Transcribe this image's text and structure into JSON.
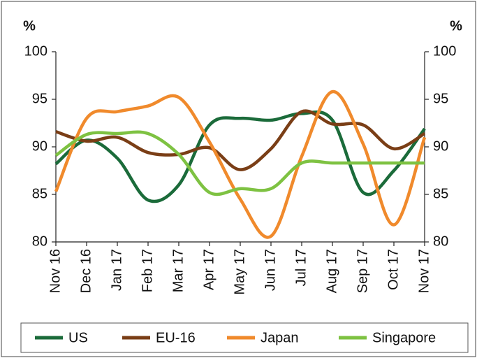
{
  "chart_data": {
    "type": "line",
    "y_label": "%",
    "y2_label": "%",
    "categories": [
      "Nov 16",
      "Dec 16",
      "Jan 17",
      "Feb 17",
      "Mar 17",
      "Apr 17",
      "May 17",
      "Jun 17",
      "Jul 17",
      "Aug 17",
      "Sep 17",
      "Oct 17",
      "Nov 17"
    ],
    "series": [
      {
        "name": "US",
        "color": "#1b6b3a",
        "values": [
          88.2,
          90.7,
          88.8,
          84.4,
          86.0,
          92.3,
          93.0,
          92.8,
          93.5,
          92.8,
          85.2,
          87.5,
          91.9
        ]
      },
      {
        "name": "EU-16",
        "color": "#7a3e16",
        "values": [
          91.6,
          90.6,
          91.0,
          89.4,
          89.2,
          89.9,
          87.6,
          89.8,
          93.7,
          92.4,
          92.3,
          89.8,
          91.4
        ]
      },
      {
        "name": "Japan",
        "color": "#f08a2c",
        "values": [
          85.3,
          93.0,
          93.7,
          94.3,
          95.2,
          90.5,
          84.5,
          80.6,
          89.0,
          95.8,
          90.3,
          81.8,
          91.0
        ]
      },
      {
        "name": "Singapore",
        "color": "#7ec242",
        "values": [
          89.1,
          91.3,
          91.4,
          91.4,
          89.2,
          85.2,
          85.6,
          85.6,
          88.3,
          88.3,
          88.3,
          88.3,
          88.3
        ]
      }
    ],
    "ylim": [
      80,
      100
    ],
    "yticks": [
      80,
      85,
      90,
      95,
      100
    ],
    "y2lim": [
      80,
      100
    ],
    "y2ticks": [
      80,
      85,
      90,
      95,
      100
    ],
    "legend": "bottom"
  }
}
